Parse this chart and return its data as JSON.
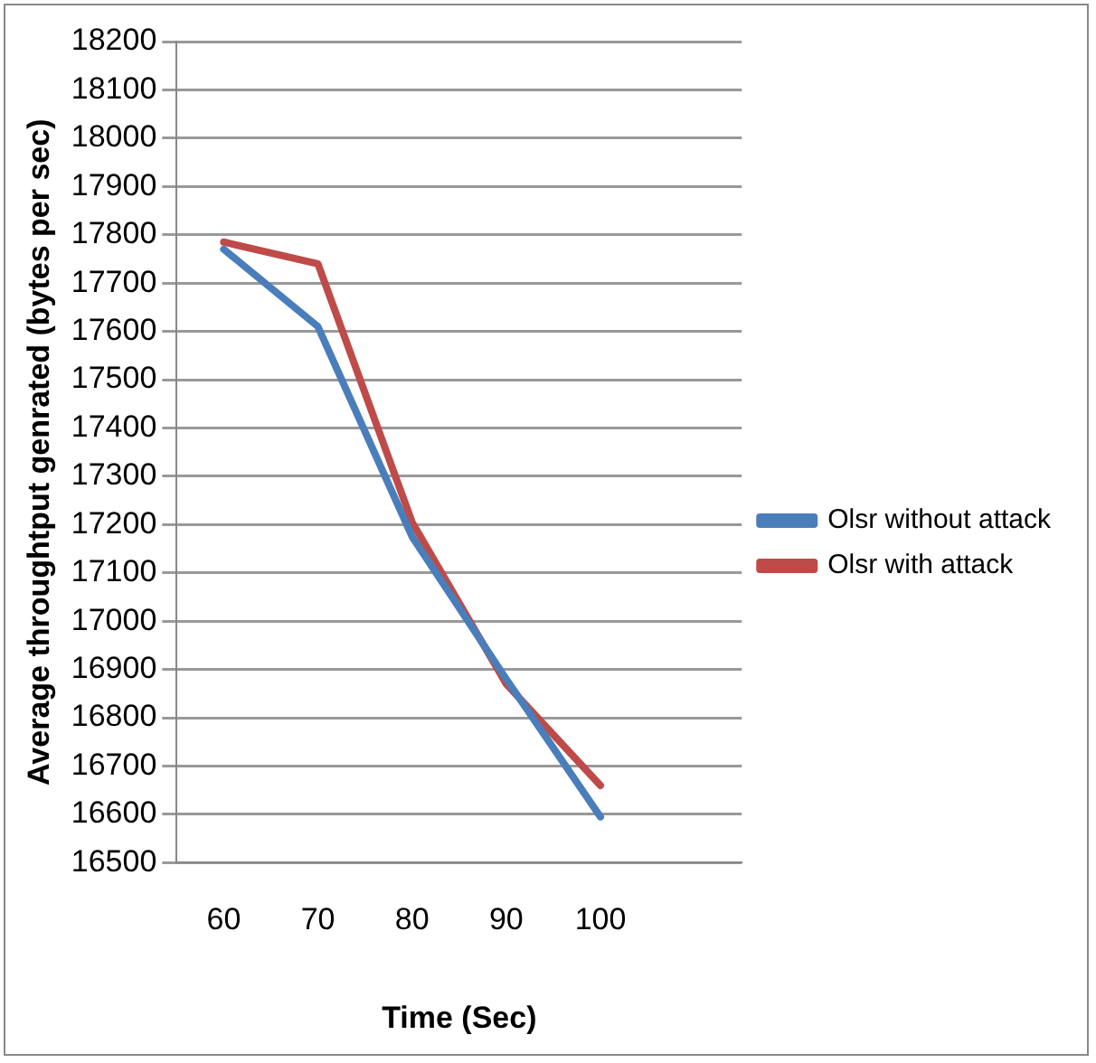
{
  "chart_data": {
    "type": "line",
    "xlabel": "Time (Sec)",
    "ylabel": "Average throughtput genrated (bytes per sec)",
    "categories": [
      "60",
      "70",
      "80",
      "90",
      "100",
      null
    ],
    "series": [
      {
        "name": "Olsr without attack",
        "color": "#4a7ebb",
        "values": [
          17770,
          17610,
          17175,
          16880,
          16595,
          null
        ]
      },
      {
        "name": "Olsr with attack",
        "color": "#be4b48",
        "values": [
          17785,
          17740,
          17205,
          16870,
          16660,
          null
        ]
      }
    ],
    "ylim": [
      16500,
      18200
    ],
    "yticks": [
      16500,
      16600,
      16700,
      16800,
      16900,
      17000,
      17100,
      17200,
      17300,
      17400,
      17500,
      17600,
      17700,
      17800,
      17900,
      18000,
      18100,
      18200
    ],
    "grid": "y",
    "legend": "right",
    "marker": "none",
    "line_style": "solid"
  }
}
